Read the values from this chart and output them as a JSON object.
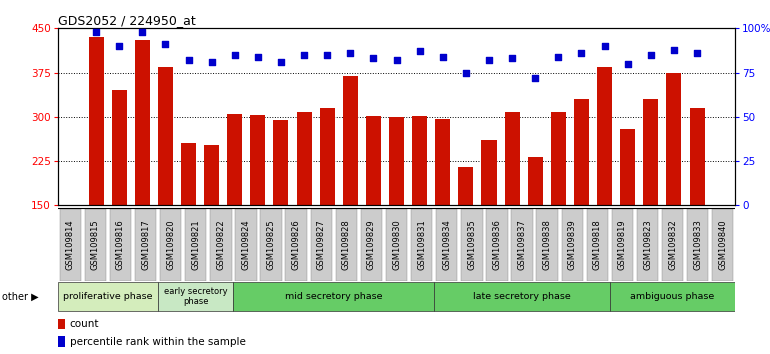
{
  "title": "GDS2052 / 224950_at",
  "samples": [
    "GSM109814",
    "GSM109815",
    "GSM109816",
    "GSM109817",
    "GSM109820",
    "GSM109821",
    "GSM109822",
    "GSM109824",
    "GSM109825",
    "GSM109826",
    "GSM109827",
    "GSM109828",
    "GSM109829",
    "GSM109830",
    "GSM109831",
    "GSM109834",
    "GSM109835",
    "GSM109836",
    "GSM109837",
    "GSM109838",
    "GSM109839",
    "GSM109818",
    "GSM109819",
    "GSM109823",
    "GSM109832",
    "GSM109833",
    "GSM109840"
  ],
  "counts": [
    435,
    345,
    430,
    385,
    255,
    252,
    305,
    303,
    295,
    308,
    315,
    370,
    302,
    299,
    302,
    296,
    215,
    260,
    308,
    232,
    308,
    330,
    385,
    280,
    330,
    375,
    315
  ],
  "percentiles": [
    98,
    90,
    98,
    91,
    82,
    81,
    85,
    84,
    81,
    85,
    85,
    86,
    83,
    82,
    87,
    84,
    75,
    82,
    83,
    72,
    84,
    86,
    90,
    80,
    85,
    88,
    86
  ],
  "ylim_left": [
    150,
    450
  ],
  "ylim_right": [
    0,
    100
  ],
  "yticks_left": [
    150,
    225,
    300,
    375,
    450
  ],
  "yticks_right": [
    0,
    25,
    50,
    75,
    100
  ],
  "bar_color": "#cc1100",
  "dot_color": "#0000cc",
  "hgrid_vals": [
    225,
    300,
    375
  ],
  "phases": [
    {
      "label": "proliferative phase",
      "start": 0,
      "end": 4,
      "color": "#d4edbc"
    },
    {
      "label": "early secretory\nphase",
      "start": 4,
      "end": 7,
      "color": "#c8e8c4"
    },
    {
      "label": "mid secretory phase",
      "start": 7,
      "end": 15,
      "color": "#66cc66"
    },
    {
      "label": "late secretory phase",
      "start": 15,
      "end": 22,
      "color": "#66cc66"
    },
    {
      "label": "ambiguous phase",
      "start": 22,
      "end": 27,
      "color": "#66cc66"
    }
  ]
}
